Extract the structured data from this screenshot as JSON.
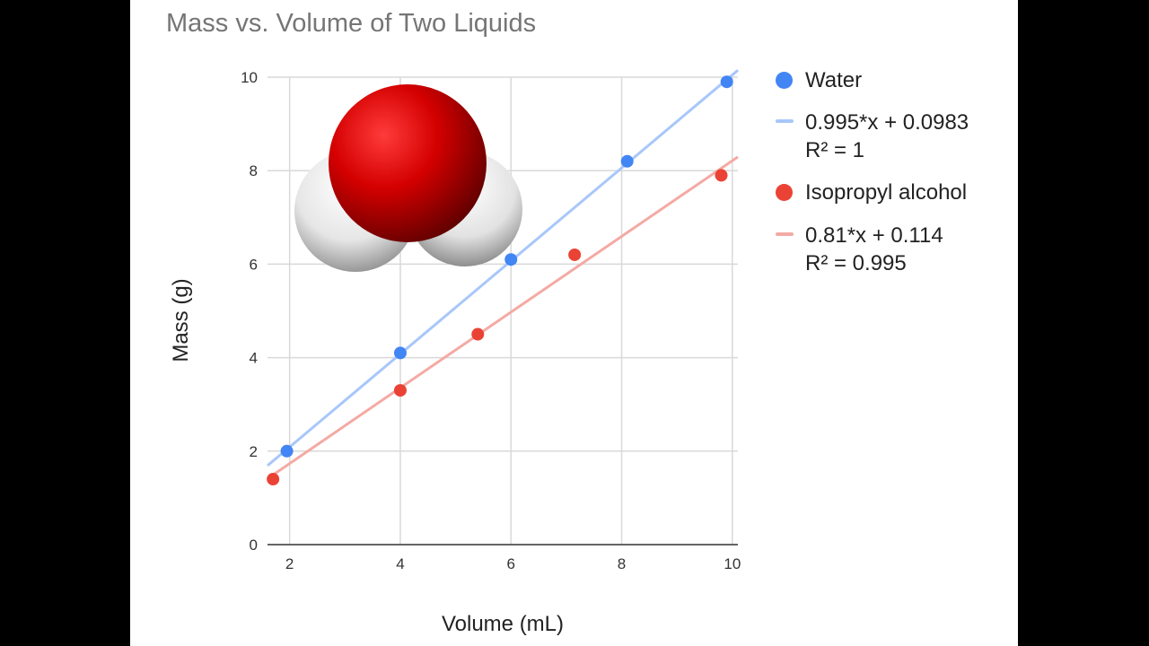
{
  "title": "Mass vs. Volume of Two Liquids",
  "chart_data": {
    "type": "scatter",
    "title": "Mass vs. Volume of Two Liquids",
    "xlabel": "Volume (mL)",
    "ylabel": "Mass (g)",
    "xlim": [
      1.6,
      10.1
    ],
    "ylim": [
      0,
      10
    ],
    "xticks": [
      "2",
      "4",
      "6",
      "8",
      "10"
    ],
    "yticks": [
      "0",
      "2",
      "4",
      "6",
      "8",
      "10"
    ],
    "grid": true,
    "legend_position": "right",
    "series": [
      {
        "name": "Water",
        "color": "#4285f4",
        "trend_color": "#a8c7fa",
        "x": [
          1.95,
          4.0,
          6.0,
          8.1,
          9.9
        ],
        "y": [
          2.0,
          4.1,
          6.1,
          8.2,
          9.9
        ],
        "trendline": {
          "slope": 0.995,
          "intercept": 0.0983,
          "equation": "0.995*x + 0.0983",
          "r2": "R² = 1"
        }
      },
      {
        "name": "Isopropyl alcohol",
        "color": "#ea4335",
        "trend_color": "#f4aaa4",
        "x": [
          1.7,
          4.0,
          5.4,
          7.15,
          9.8
        ],
        "y": [
          1.4,
          3.3,
          4.5,
          6.2,
          7.9
        ],
        "trendline": {
          "slope": 0.81,
          "intercept": 0.114,
          "equation": "0.81*x + 0.114",
          "r2": "R² = 0.995"
        }
      }
    ]
  },
  "overlay": {
    "image": "water-molecule-space-filling-model",
    "atom_colors": {
      "oxygen": "#cc0000",
      "hydrogen": "#f0f0f0"
    }
  }
}
